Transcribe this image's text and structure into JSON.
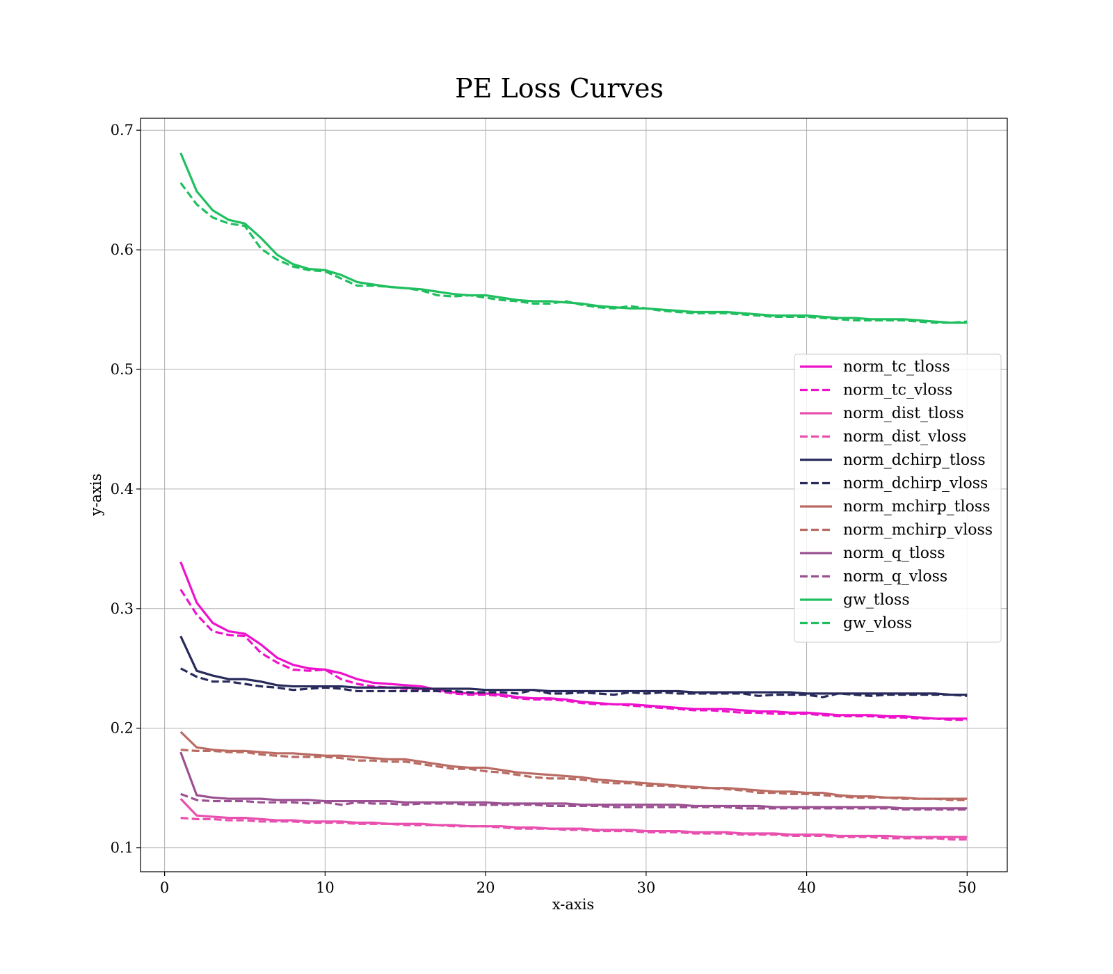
{
  "chart_data": {
    "type": "line",
    "title": "PE Loss Curves",
    "xlabel": "x-axis",
    "ylabel": "y-axis",
    "xlim": [
      -1.5,
      52.5
    ],
    "ylim": [
      0.08,
      0.71
    ],
    "xticks": [
      0,
      10,
      20,
      30,
      40,
      50
    ],
    "yticks": [
      0.1,
      0.2,
      0.3,
      0.4,
      0.5,
      0.6,
      0.7
    ],
    "xtick_labels": [
      "0",
      "10",
      "20",
      "30",
      "40",
      "50"
    ],
    "ytick_labels": [
      "0.1",
      "0.2",
      "0.3",
      "0.4",
      "0.5",
      "0.6",
      "0.7"
    ],
    "grid": true,
    "legend_position": "center-right",
    "x": [
      1,
      2,
      3,
      4,
      5,
      6,
      7,
      8,
      9,
      10,
      11,
      12,
      13,
      14,
      15,
      16,
      17,
      18,
      19,
      20,
      21,
      22,
      23,
      24,
      25,
      26,
      27,
      28,
      29,
      30,
      31,
      32,
      33,
      34,
      35,
      36,
      37,
      38,
      39,
      40,
      41,
      42,
      43,
      44,
      45,
      46,
      47,
      48,
      49,
      50
    ],
    "series": [
      {
        "name": "norm_tc_tloss",
        "color": "#ee11cc",
        "dash": "solid",
        "values": [
          0.339,
          0.305,
          0.288,
          0.281,
          0.279,
          0.27,
          0.259,
          0.253,
          0.25,
          0.249,
          0.246,
          0.241,
          0.238,
          0.237,
          0.236,
          0.235,
          0.232,
          0.23,
          0.229,
          0.229,
          0.228,
          0.226,
          0.225,
          0.225,
          0.224,
          0.222,
          0.221,
          0.22,
          0.22,
          0.219,
          0.218,
          0.217,
          0.216,
          0.216,
          0.216,
          0.215,
          0.214,
          0.214,
          0.213,
          0.213,
          0.212,
          0.211,
          0.211,
          0.211,
          0.21,
          0.21,
          0.209,
          0.208,
          0.208,
          0.208
        ]
      },
      {
        "name": "norm_tc_vloss",
        "color": "#ee11cc",
        "dash": "dashed",
        "values": [
          0.316,
          0.295,
          0.281,
          0.278,
          0.277,
          0.263,
          0.255,
          0.249,
          0.248,
          0.249,
          0.241,
          0.237,
          0.235,
          0.234,
          0.233,
          0.232,
          0.231,
          0.229,
          0.228,
          0.228,
          0.227,
          0.225,
          0.224,
          0.224,
          0.223,
          0.221,
          0.22,
          0.22,
          0.219,
          0.218,
          0.217,
          0.216,
          0.215,
          0.215,
          0.214,
          0.213,
          0.213,
          0.212,
          0.212,
          0.212,
          0.211,
          0.21,
          0.21,
          0.21,
          0.209,
          0.209,
          0.208,
          0.208,
          0.207,
          0.207
        ]
      },
      {
        "name": "norm_dist_tloss",
        "color": "#e84fae",
        "dash": "solid",
        "values": [
          0.141,
          0.127,
          0.126,
          0.125,
          0.125,
          0.124,
          0.123,
          0.123,
          0.122,
          0.122,
          0.122,
          0.121,
          0.121,
          0.12,
          0.12,
          0.12,
          0.119,
          0.119,
          0.118,
          0.118,
          0.118,
          0.117,
          0.117,
          0.116,
          0.116,
          0.116,
          0.115,
          0.115,
          0.115,
          0.114,
          0.114,
          0.114,
          0.113,
          0.113,
          0.113,
          0.112,
          0.112,
          0.112,
          0.111,
          0.111,
          0.111,
          0.11,
          0.11,
          0.11,
          0.11,
          0.109,
          0.109,
          0.109,
          0.109,
          0.109
        ]
      },
      {
        "name": "norm_dist_vloss",
        "color": "#e84fae",
        "dash": "dashed",
        "values": [
          0.125,
          0.124,
          0.124,
          0.123,
          0.123,
          0.122,
          0.122,
          0.122,
          0.121,
          0.121,
          0.121,
          0.12,
          0.12,
          0.12,
          0.119,
          0.119,
          0.119,
          0.118,
          0.118,
          0.118,
          0.117,
          0.116,
          0.116,
          0.116,
          0.115,
          0.115,
          0.114,
          0.114,
          0.114,
          0.113,
          0.113,
          0.113,
          0.112,
          0.112,
          0.112,
          0.111,
          0.111,
          0.111,
          0.11,
          0.11,
          0.11,
          0.109,
          0.109,
          0.109,
          0.108,
          0.108,
          0.108,
          0.108,
          0.107,
          0.107
        ]
      },
      {
        "name": "norm_dchirp_tloss",
        "color": "#272a5a",
        "dash": "solid",
        "values": [
          0.277,
          0.248,
          0.244,
          0.241,
          0.241,
          0.239,
          0.236,
          0.235,
          0.235,
          0.235,
          0.235,
          0.234,
          0.234,
          0.234,
          0.234,
          0.233,
          0.233,
          0.233,
          0.233,
          0.232,
          0.232,
          0.232,
          0.232,
          0.231,
          0.231,
          0.231,
          0.231,
          0.231,
          0.231,
          0.231,
          0.231,
          0.231,
          0.23,
          0.23,
          0.23,
          0.23,
          0.23,
          0.23,
          0.23,
          0.229,
          0.229,
          0.229,
          0.229,
          0.229,
          0.229,
          0.229,
          0.229,
          0.229,
          0.228,
          0.228
        ]
      },
      {
        "name": "norm_dchirp_vloss",
        "color": "#272a5a",
        "dash": "dashed",
        "values": [
          0.25,
          0.243,
          0.239,
          0.239,
          0.237,
          0.235,
          0.234,
          0.232,
          0.233,
          0.234,
          0.233,
          0.231,
          0.231,
          0.231,
          0.231,
          0.231,
          0.231,
          0.231,
          0.23,
          0.23,
          0.23,
          0.229,
          0.232,
          0.229,
          0.229,
          0.23,
          0.229,
          0.228,
          0.23,
          0.229,
          0.23,
          0.229,
          0.229,
          0.229,
          0.229,
          0.229,
          0.227,
          0.228,
          0.228,
          0.228,
          0.226,
          0.229,
          0.228,
          0.227,
          0.228,
          0.228,
          0.228,
          0.228,
          0.228,
          0.227
        ]
      },
      {
        "name": "norm_mchirp_tloss",
        "color": "#b96b63",
        "dash": "solid",
        "values": [
          0.197,
          0.184,
          0.182,
          0.181,
          0.181,
          0.18,
          0.179,
          0.179,
          0.178,
          0.177,
          0.177,
          0.176,
          0.175,
          0.174,
          0.174,
          0.172,
          0.17,
          0.168,
          0.167,
          0.167,
          0.165,
          0.163,
          0.162,
          0.161,
          0.16,
          0.159,
          0.157,
          0.156,
          0.155,
          0.154,
          0.153,
          0.152,
          0.151,
          0.15,
          0.15,
          0.149,
          0.148,
          0.147,
          0.147,
          0.146,
          0.146,
          0.144,
          0.143,
          0.143,
          0.142,
          0.142,
          0.141,
          0.141,
          0.141,
          0.141
        ]
      },
      {
        "name": "norm_mchirp_vloss",
        "color": "#b96b63",
        "dash": "dashed",
        "values": [
          0.182,
          0.181,
          0.181,
          0.18,
          0.18,
          0.178,
          0.177,
          0.176,
          0.176,
          0.176,
          0.175,
          0.173,
          0.173,
          0.172,
          0.172,
          0.17,
          0.168,
          0.166,
          0.166,
          0.164,
          0.163,
          0.161,
          0.159,
          0.158,
          0.158,
          0.157,
          0.155,
          0.154,
          0.154,
          0.152,
          0.152,
          0.151,
          0.15,
          0.15,
          0.149,
          0.148,
          0.146,
          0.146,
          0.145,
          0.145,
          0.144,
          0.143,
          0.142,
          0.142,
          0.142,
          0.141,
          0.141,
          0.141,
          0.14,
          0.14
        ]
      },
      {
        "name": "norm_q_tloss",
        "color": "#9b5091",
        "dash": "solid",
        "values": [
          0.18,
          0.144,
          0.142,
          0.141,
          0.141,
          0.141,
          0.14,
          0.14,
          0.14,
          0.139,
          0.139,
          0.139,
          0.139,
          0.139,
          0.138,
          0.138,
          0.138,
          0.138,
          0.138,
          0.138,
          0.137,
          0.137,
          0.137,
          0.137,
          0.137,
          0.136,
          0.136,
          0.136,
          0.136,
          0.136,
          0.136,
          0.136,
          0.135,
          0.135,
          0.135,
          0.135,
          0.135,
          0.134,
          0.134,
          0.134,
          0.134,
          0.134,
          0.134,
          0.134,
          0.134,
          0.133,
          0.133,
          0.133,
          0.133,
          0.133
        ]
      },
      {
        "name": "norm_q_vloss",
        "color": "#9b5091",
        "dash": "dashed",
        "values": [
          0.145,
          0.14,
          0.139,
          0.139,
          0.139,
          0.138,
          0.138,
          0.138,
          0.137,
          0.138,
          0.136,
          0.138,
          0.137,
          0.137,
          0.136,
          0.137,
          0.137,
          0.137,
          0.136,
          0.136,
          0.136,
          0.136,
          0.136,
          0.135,
          0.135,
          0.135,
          0.135,
          0.134,
          0.134,
          0.134,
          0.134,
          0.134,
          0.134,
          0.134,
          0.134,
          0.133,
          0.133,
          0.133,
          0.133,
          0.133,
          0.133,
          0.133,
          0.133,
          0.133,
          0.133,
          0.132,
          0.132,
          0.132,
          0.132,
          0.132
        ]
      },
      {
        "name": "gw_tloss",
        "color": "#1fbf5f",
        "dash": "solid",
        "values": [
          0.681,
          0.649,
          0.633,
          0.625,
          0.622,
          0.61,
          0.596,
          0.588,
          0.584,
          0.583,
          0.579,
          0.573,
          0.571,
          0.569,
          0.568,
          0.567,
          0.565,
          0.563,
          0.562,
          0.562,
          0.56,
          0.558,
          0.557,
          0.557,
          0.556,
          0.555,
          0.553,
          0.552,
          0.551,
          0.551,
          0.55,
          0.549,
          0.548,
          0.548,
          0.548,
          0.547,
          0.546,
          0.545,
          0.545,
          0.545,
          0.544,
          0.543,
          0.543,
          0.542,
          0.542,
          0.542,
          0.541,
          0.54,
          0.539,
          0.539
        ]
      },
      {
        "name": "gw_vloss",
        "color": "#1fbf5f",
        "dash": "dashed",
        "values": [
          0.656,
          0.638,
          0.627,
          0.622,
          0.62,
          0.601,
          0.592,
          0.586,
          0.583,
          0.582,
          0.576,
          0.57,
          0.57,
          0.569,
          0.568,
          0.566,
          0.562,
          0.561,
          0.562,
          0.56,
          0.558,
          0.557,
          0.555,
          0.555,
          0.557,
          0.554,
          0.552,
          0.551,
          0.553,
          0.551,
          0.549,
          0.548,
          0.547,
          0.547,
          0.547,
          0.546,
          0.545,
          0.544,
          0.544,
          0.544,
          0.543,
          0.542,
          0.541,
          0.541,
          0.541,
          0.541,
          0.54,
          0.539,
          0.539,
          0.54
        ]
      }
    ]
  }
}
